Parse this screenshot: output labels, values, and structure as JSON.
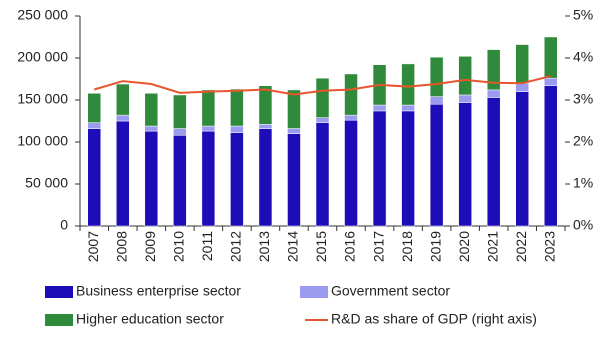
{
  "chart_data": {
    "type": "bar",
    "categories": [
      "2007",
      "2008",
      "2009",
      "2010",
      "2011",
      "2012",
      "2013",
      "2014",
      "2015",
      "2016",
      "2017",
      "2018",
      "2019",
      "2020",
      "2021",
      "2022",
      "2023"
    ],
    "series": [
      {
        "name": "Business enterprise sector",
        "color": "#1c0db8",
        "values": [
          116000,
          125000,
          113000,
          108000,
          113000,
          111000,
          116000,
          110000,
          123000,
          126000,
          137000,
          137000,
          145000,
          147000,
          153000,
          160000,
          167000
        ]
      },
      {
        "name": "Government sector",
        "color": "#9b9cf0",
        "values": [
          7000,
          7000,
          6000,
          8000,
          6000,
          8000,
          5000,
          6000,
          6000,
          6000,
          7000,
          7000,
          9000,
          9000,
          9000,
          10000,
          9000
        ]
      },
      {
        "name": "Higher education sector",
        "color": "#2f8a3c",
        "values": [
          35000,
          37000,
          39000,
          40000,
          43000,
          44000,
          46000,
          46000,
          47000,
          49000,
          48000,
          49000,
          47000,
          46000,
          48000,
          46000,
          49000
        ]
      },
      {
        "name": "R&D as share of GDP (right axis)",
        "color": "#e8552d",
        "axis": "y2",
        "type": "line",
        "values": [
          3.25,
          3.45,
          3.38,
          3.17,
          3.2,
          3.22,
          3.25,
          3.13,
          3.22,
          3.25,
          3.36,
          3.32,
          3.38,
          3.48,
          3.41,
          3.4,
          3.57
        ]
      }
    ],
    "ylim": [
      0,
      250000
    ],
    "yticks": [
      {
        "value": 0,
        "label": "0"
      },
      {
        "value": 50000,
        "label": "50 000"
      },
      {
        "value": 100000,
        "label": "100 000"
      },
      {
        "value": 150000,
        "label": "150 000"
      },
      {
        "value": 200000,
        "label": "200 000"
      },
      {
        "value": 250000,
        "label": "250 000"
      }
    ],
    "y2lim": [
      0,
      5
    ],
    "y2ticks": [
      {
        "value": 0,
        "label": "0%"
      },
      {
        "value": 1,
        "label": "1%"
      },
      {
        "value": 2,
        "label": "2%"
      },
      {
        "value": 3,
        "label": "3%"
      },
      {
        "value": 4,
        "label": "4%"
      },
      {
        "value": 5,
        "label": "5%"
      }
    ],
    "grid": false
  }
}
